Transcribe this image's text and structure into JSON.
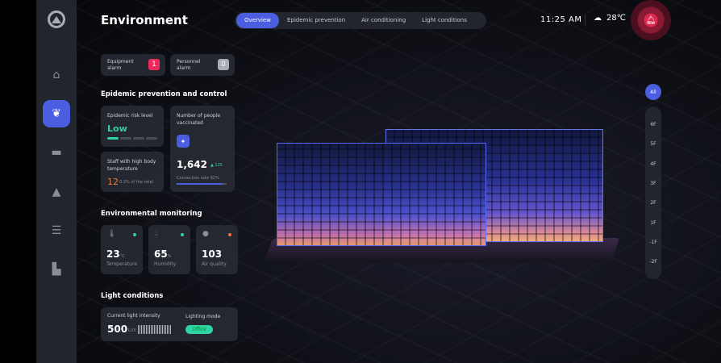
{
  "header": {
    "title": "Environment",
    "tabs": [
      {
        "label": "Overview",
        "active": true
      },
      {
        "label": "Epidemic prevention"
      },
      {
        "label": "Air conditioning"
      },
      {
        "label": "Light conditions"
      }
    ],
    "time": "11:25 AM",
    "temperature": "28℃",
    "weather_icon": "cloud-icon",
    "alert_icon": "bell-icon",
    "accent": "#4c5ee0",
    "alert_color": "#e0294f"
  },
  "sidebar": {
    "items": [
      {
        "icon": "home-icon"
      },
      {
        "icon": "plant-icon",
        "active": true
      },
      {
        "icon": "toolbox-icon"
      },
      {
        "icon": "alarm-icon"
      },
      {
        "icon": "server-icon"
      },
      {
        "icon": "layout-icon"
      }
    ]
  },
  "alarms": {
    "equipment": {
      "label": "Equipment alarm",
      "count": "1"
    },
    "personnel": {
      "label": "Personnel alarm",
      "count": "0"
    }
  },
  "epidemic": {
    "heading": "Epidemic prevention and control",
    "risk": {
      "label": "Epidemic risk level",
      "value": "Low",
      "level": 1,
      "of": 4
    },
    "vaccinated": {
      "label": "Number of people vaccinated",
      "value": "1,642",
      "delta": "▲ 125",
      "rate_label": "Connection rate 92%",
      "rate": 0.92
    },
    "fever": {
      "label": "Staff with high body temperature",
      "value": "12",
      "note": "0.3% of the total"
    }
  },
  "environment": {
    "heading": "Environmental monitoring",
    "items": [
      {
        "value": "23",
        "unit": "°C",
        "label": "Temperature",
        "status": "#2ed3a0"
      },
      {
        "value": "65",
        "unit": "%",
        "label": "Humidity",
        "status": "#2ed3a0"
      },
      {
        "value": "103",
        "unit": "",
        "label": "Air quality",
        "status": "#f07a3a"
      }
    ]
  },
  "light": {
    "heading": "Light conditions",
    "intensity_label": "Current light intensity",
    "intensity": "500",
    "unit": "LUX",
    "mode_label": "Lighting mode",
    "mode": "Office"
  },
  "floors": {
    "all": "All",
    "list": [
      "6F",
      "5F",
      "4F",
      "3F",
      "2F",
      "1F",
      "-1F",
      "-2F"
    ]
  }
}
